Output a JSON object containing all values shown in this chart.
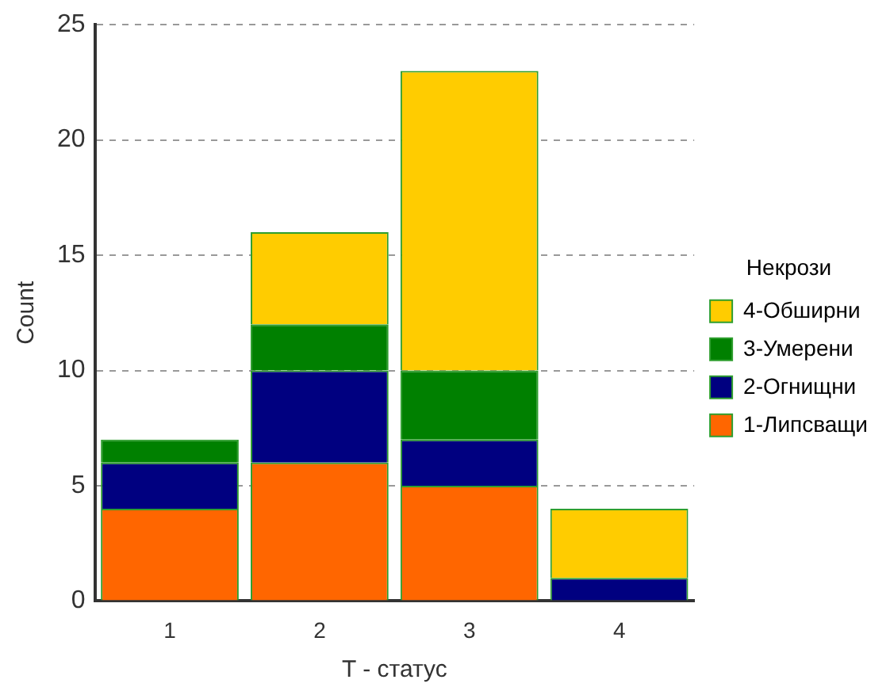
{
  "chart_data": {
    "type": "bar",
    "stacked": true,
    "xlabel": "T - статус",
    "ylabel": "Count",
    "legend_title": "Некрози",
    "legend": "right",
    "grid": "y",
    "categories": [
      "1",
      "2",
      "3",
      "4"
    ],
    "ylim": [
      0,
      25
    ],
    "yticks": [
      0,
      5,
      10,
      15,
      20,
      25
    ],
    "series": [
      {
        "name": "1-Липсващи",
        "color": "#ff6600",
        "values": [
          4,
          6,
          5,
          0
        ]
      },
      {
        "name": "2-Огнищни",
        "color": "#000080",
        "values": [
          2,
          4,
          2,
          1
        ]
      },
      {
        "name": "3-Умерени",
        "color": "#008000",
        "values": [
          1,
          2,
          3,
          0
        ]
      },
      {
        "name": "4-Обширни",
        "color": "#ffcc00",
        "values": [
          0,
          4,
          13,
          3
        ]
      }
    ]
  }
}
